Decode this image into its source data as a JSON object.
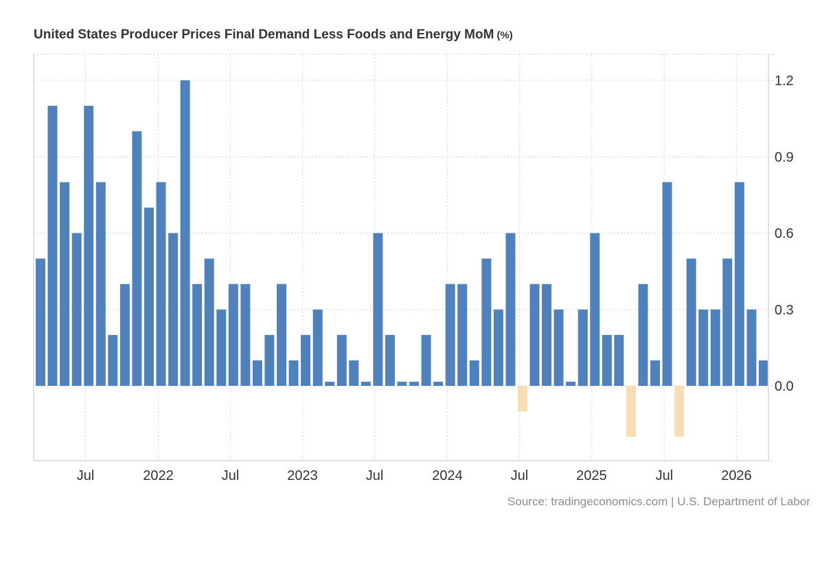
{
  "title": "United States Producer Prices Final Demand Less Foods and Energy MoM",
  "unit_label": "(%)",
  "source": "Source: tradingeconomics.com | U.S. Department of Labor",
  "colors": {
    "positive": "#4f81bd",
    "negative": "#f5deb3",
    "grid": "#dddddd",
    "axis": "#e0e0e0",
    "text": "#333333",
    "source_text": "#8c8c8c"
  },
  "chart_data": {
    "type": "bar",
    "title": "United States Producer Prices Final Demand Less Foods and Energy MoM (%)",
    "xlabel": "",
    "ylabel": "%",
    "ylim": [
      -0.3,
      1.3
    ],
    "yticks": [
      0.0,
      0.3,
      0.6,
      0.9,
      1.2
    ],
    "ytick_labels": [
      "0.0",
      "0.3",
      "0.6",
      "0.9",
      "1.2"
    ],
    "y_axis_position": "right",
    "grid": true,
    "legend": "none",
    "xtick_labels": [
      {
        "label": "Jul",
        "date": "2021-07"
      },
      {
        "label": "2022",
        "date": "2022-01"
      },
      {
        "label": "Jul",
        "date": "2022-07"
      },
      {
        "label": "2023",
        "date": "2023-01"
      },
      {
        "label": "Jul",
        "date": "2023-07"
      },
      {
        "label": "2024",
        "date": "2024-01"
      },
      {
        "label": "Jul",
        "date": "2024-07"
      },
      {
        "label": "2025",
        "date": "2025-01"
      },
      {
        "label": "Jul",
        "date": "2025-07"
      },
      {
        "label": "2026",
        "date": "2026-01"
      }
    ],
    "categories": [
      "2021-03",
      "2021-04",
      "2021-05",
      "2021-06",
      "2021-07",
      "2021-08",
      "2021-09",
      "2021-10",
      "2021-11",
      "2021-12",
      "2022-01",
      "2022-02",
      "2022-03",
      "2022-04",
      "2022-05",
      "2022-06",
      "2022-07",
      "2022-08",
      "2022-09",
      "2022-10",
      "2022-11",
      "2022-12",
      "2023-01",
      "2023-02",
      "2023-03",
      "2023-04",
      "2023-05",
      "2023-06",
      "2023-07",
      "2023-08",
      "2023-09",
      "2023-10",
      "2023-11",
      "2023-12",
      "2024-01",
      "2024-02",
      "2024-03",
      "2024-04",
      "2024-05",
      "2024-06",
      "2024-07",
      "2024-08",
      "2024-09",
      "2024-10",
      "2024-11",
      "2024-12",
      "2025-01",
      "2025-02",
      "2025-03",
      "2025-04",
      "2025-05",
      "2025-06",
      "2025-07",
      "2025-08",
      "2025-09",
      "2025-10",
      "2025-11",
      "2025-12",
      "2026-01",
      "2026-02",
      "2026-03"
    ],
    "values": [
      0.5,
      1.1,
      0.8,
      0.6,
      1.1,
      0.8,
      0.2,
      0.4,
      1.0,
      0.7,
      0.8,
      0.6,
      1.2,
      0.4,
      0.5,
      0.3,
      0.4,
      0.4,
      0.1,
      0.2,
      0.4,
      0.1,
      0.2,
      0.3,
      0.0,
      0.2,
      0.1,
      0.0,
      0.6,
      0.2,
      0.0,
      0.0,
      0.2,
      0.0,
      0.4,
      0.4,
      0.1,
      0.5,
      0.3,
      0.6,
      -0.1,
      0.4,
      0.4,
      0.3,
      0.0,
      0.3,
      0.6,
      0.2,
      0.2,
      -0.2,
      0.4,
      0.1,
      0.8,
      -0.2,
      0.5,
      0.3,
      0.3,
      0.5,
      0.8,
      0.3,
      0.1
    ]
  }
}
